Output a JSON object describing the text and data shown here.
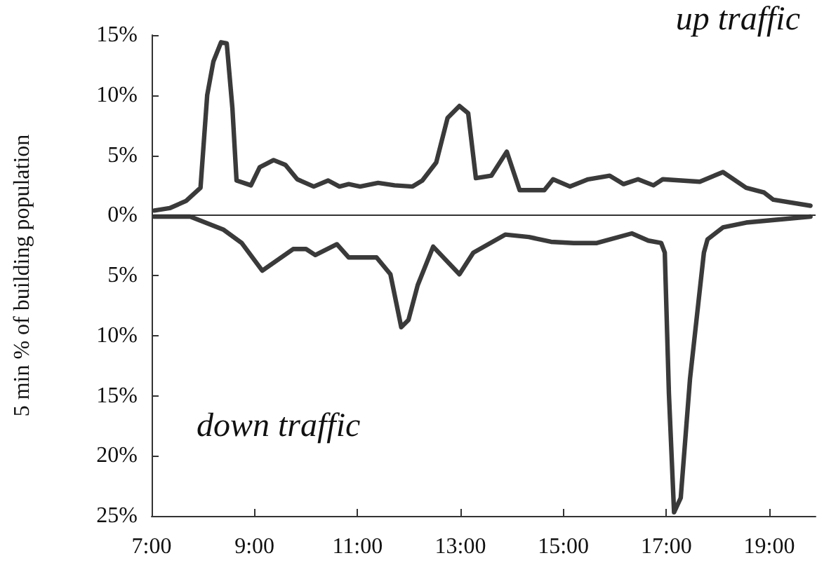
{
  "chart_data": {
    "type": "line",
    "ylabel": "5 min % of building population",
    "xlim": [
      7,
      19.9
    ],
    "xticks": [
      {
        "value": 7,
        "label": "7:00"
      },
      {
        "value": 9,
        "label": "9:00"
      },
      {
        "value": 11,
        "label": "11:00"
      },
      {
        "value": 13,
        "label": "13:00"
      },
      {
        "value": 15,
        "label": "15:00"
      },
      {
        "value": 17,
        "label": "17:00"
      },
      {
        "value": 19,
        "label": "19:00"
      }
    ],
    "ylim": [
      -25,
      15
    ],
    "yticks": [
      {
        "value": 15,
        "label": "15%"
      },
      {
        "value": 10,
        "label": "10%"
      },
      {
        "value": 5,
        "label": "5%"
      },
      {
        "value": 0,
        "label": "0%"
      },
      {
        "value": -5,
        "label": "5%"
      },
      {
        "value": -10,
        "label": "10%"
      },
      {
        "value": -15,
        "label": "15%"
      },
      {
        "value": -20,
        "label": "20%"
      },
      {
        "value": -25,
        "label": "25%"
      }
    ],
    "grid": false,
    "annotations": [
      "up traffic",
      "down traffic"
    ],
    "marker": "none",
    "line_style": "solid",
    "ref_lines": [
      {
        "axis": "y",
        "value": 0,
        "label": null,
        "color": "#333333"
      }
    ],
    "series": [
      {
        "color": "#3a3a3a",
        "x": [
          7.05,
          7.35,
          7.67,
          7.95,
          8.08,
          8.2,
          8.35,
          8.46,
          8.57,
          8.65,
          8.93,
          9.1,
          9.37,
          9.6,
          9.83,
          10.15,
          10.43,
          10.65,
          10.83,
          11.05,
          11.4,
          11.72,
          12.07,
          12.26,
          12.53,
          12.75,
          12.98,
          13.15,
          13.3,
          13.6,
          13.9,
          14.15,
          14.63,
          14.8,
          15.13,
          15.48,
          15.9,
          16.17,
          16.45,
          16.75,
          16.93,
          17.65,
          18.1,
          18.55,
          18.9,
          19.08,
          19.8
        ],
        "values": [
          0.4,
          0.6,
          1.2,
          2.3,
          10,
          12.8,
          14.4,
          14.3,
          8.9,
          2.9,
          2.5,
          4.0,
          4.6,
          4.2,
          3.0,
          2.4,
          2.9,
          2.4,
          2.6,
          2.4,
          2.7,
          2.5,
          2.4,
          2.9,
          4.4,
          8.1,
          9.1,
          8.5,
          3.1,
          3.3,
          5.3,
          2.1,
          2.1,
          3.0,
          2.4,
          3.0,
          3.3,
          2.6,
          3.0,
          2.5,
          3.0,
          2.8,
          3.6,
          2.3,
          1.9,
          1.3,
          0.8
        ]
      },
      {
        "color": "#3a3a3a",
        "x": [
          7.05,
          7.75,
          8.4,
          8.75,
          9.15,
          9.75,
          10.0,
          10.18,
          10.6,
          10.83,
          11.37,
          11.64,
          11.85,
          11.99,
          12.17,
          12.47,
          12.98,
          13.25,
          13.87,
          14.33,
          14.76,
          15.2,
          15.65,
          16.33,
          16.65,
          16.9,
          16.97,
          17.05,
          17.15,
          17.28,
          17.46,
          17.73,
          17.8,
          18.1,
          18.55,
          19.8
        ],
        "values": [
          -0.1,
          -0.1,
          -1.2,
          -2.3,
          -4.6,
          -2.8,
          -2.8,
          -3.3,
          -2.4,
          -3.5,
          -3.5,
          -4.9,
          -9.3,
          -8.7,
          -5.8,
          -2.6,
          -4.9,
          -3.1,
          -1.6,
          -1.8,
          -2.2,
          -2.3,
          -2.3,
          -1.5,
          -2.1,
          -2.3,
          -3.1,
          -14.8,
          -24.7,
          -23.5,
          -13.6,
          -3.1,
          -2.0,
          -1.0,
          -0.6,
          -0.1
        ]
      }
    ]
  }
}
